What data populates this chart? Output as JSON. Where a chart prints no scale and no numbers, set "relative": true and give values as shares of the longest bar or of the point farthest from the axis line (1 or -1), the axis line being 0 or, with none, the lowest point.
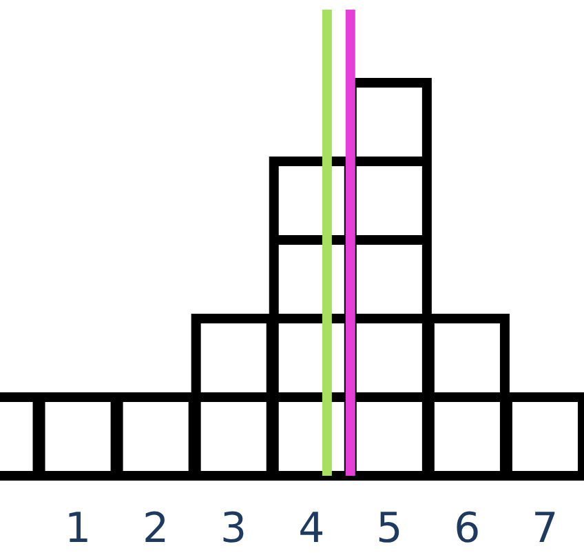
{
  "chart_data": {
    "type": "bar",
    "relative": true,
    "x": [
      0,
      1,
      2,
      3,
      4,
      5,
      6,
      7
    ],
    "values": [
      0.2,
      0.2,
      0.2,
      0.4,
      0.8,
      1,
      0.4,
      0.2
    ],
    "color": "#ffffff",
    "xlim": [
      0,
      7.5
    ],
    "xticks": [
      1,
      2,
      3,
      4,
      5,
      6,
      7
    ],
    "tick_labels": "x",
    "ref_lines": [
      {
        "axis": "x",
        "value": 4.2,
        "color": "#a6e05e"
      },
      {
        "axis": "x",
        "value": 4.5,
        "color": "#e63fd9"
      }
    ]
  }
}
